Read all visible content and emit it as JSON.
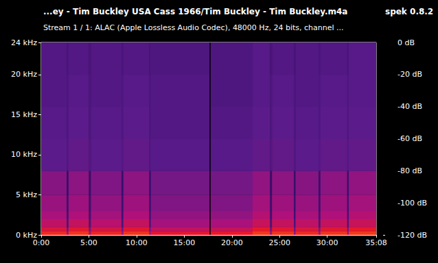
{
  "chart_data": {
    "type": "heatmap",
    "title": "...ey - Tim Buckley USA Cass 1966/Tim Buckley - Tim Buckley.m4a",
    "subtitle": "Stream 1 / 1: ALAC (Apple Lossless Audio Codec), 48000 Hz, 24 bits, channel ...",
    "annotations": [
      "spek 0.8.2"
    ],
    "xlim": [
      0,
      2108
    ],
    "xticks": [
      {
        "value": 0,
        "label": "0:00"
      },
      {
        "value": 300,
        "label": "5:00"
      },
      {
        "value": 600,
        "label": "10:00"
      },
      {
        "value": 900,
        "label": "15:00"
      },
      {
        "value": 1200,
        "label": "20:00"
      },
      {
        "value": 1500,
        "label": "25:00"
      },
      {
        "value": 1800,
        "label": "30:00"
      },
      {
        "value": 2108,
        "label": "35:08"
      }
    ],
    "ylim": [
      0,
      24
    ],
    "yticks": [
      {
        "value": 0,
        "label": "0 kHz"
      },
      {
        "value": 5,
        "label": "5 kHz"
      },
      {
        "value": 10,
        "label": "10 kHz"
      },
      {
        "value": 15,
        "label": "15 kHz"
      },
      {
        "value": 20,
        "label": "20 kHz"
      },
      {
        "value": 24,
        "label": "24 kHz"
      }
    ],
    "x_bins": [
      0,
      160,
      172,
      300,
      312,
      505,
      517,
      680,
      690,
      1060,
      1066,
      1330,
      1440,
      1452,
      1590,
      1600,
      1745,
      1757,
      1925,
      1935,
      2108
    ],
    "y_bins": [
      0,
      0.5,
      1,
      2,
      3,
      5,
      8,
      12,
      16,
      20,
      24
    ],
    "cells": [
      [
        -56,
        -63,
        -69,
        -73,
        -76,
        -79,
        -86,
        -87,
        -88,
        -88
      ],
      [
        -74,
        -84,
        -90,
        -92,
        -93,
        -94,
        -88,
        -89,
        -89,
        -90
      ],
      [
        -54,
        -61,
        -68,
        -72,
        -75,
        -78,
        -85,
        -86,
        -87,
        -88
      ],
      [
        -74,
        -84,
        -90,
        -92,
        -93,
        -94,
        -88,
        -89,
        -89,
        -90
      ],
      [
        -57,
        -64,
        -70,
        -74,
        -77,
        -80,
        -86,
        -87,
        -88,
        -88
      ],
      [
        -74,
        -84,
        -90,
        -92,
        -93,
        -94,
        -88,
        -89,
        -89,
        -90
      ],
      [
        -54,
        -61,
        -68,
        -72,
        -75,
        -78,
        -85,
        -86,
        -87,
        -88
      ],
      [
        -74,
        -84,
        -90,
        -92,
        -93,
        -94,
        -88,
        -89,
        -89,
        -90
      ],
      [
        -61,
        -68,
        -74,
        -77,
        -80,
        -82,
        -87,
        -88,
        -88,
        -89
      ],
      [
        -120,
        -120,
        -120,
        -120,
        -120,
        -120,
        -120,
        -120,
        -120,
        -120
      ],
      [
        -60,
        -67,
        -73,
        -77,
        -80,
        -82,
        -87,
        -88,
        -89,
        -89
      ],
      [
        -53,
        -60,
        -67,
        -71,
        -74,
        -77,
        -85,
        -86,
        -87,
        -87
      ],
      [
        -74,
        -84,
        -90,
        -92,
        -93,
        -94,
        -88,
        -89,
        -89,
        -90
      ],
      [
        -54,
        -61,
        -68,
        -72,
        -75,
        -78,
        -85,
        -86,
        -87,
        -88
      ],
      [
        -74,
        -84,
        -90,
        -92,
        -93,
        -94,
        -88,
        -89,
        -89,
        -90
      ],
      [
        -56,
        -63,
        -69,
        -73,
        -76,
        -79,
        -86,
        -87,
        -88,
        -88
      ],
      [
        -74,
        -84,
        -90,
        -92,
        -93,
        -94,
        -88,
        -89,
        -89,
        -90
      ],
      [
        -54,
        -61,
        -68,
        -72,
        -75,
        -78,
        -85,
        -86,
        -87,
        -88
      ],
      [
        -74,
        -84,
        -90,
        -92,
        -93,
        -94,
        -88,
        -89,
        -89,
        -90
      ],
      [
        -53,
        -60,
        -67,
        -71,
        -74,
        -77,
        -85,
        -86,
        -87,
        -87
      ]
    ],
    "colorbar": {
      "range": [
        -120,
        0
      ],
      "ticks": [
        {
          "value": 0,
          "label": "0 dB"
        },
        {
          "value": -20,
          "label": "-20 dB"
        },
        {
          "value": -40,
          "label": "-40 dB"
        },
        {
          "value": -60,
          "label": "-60 dB"
        },
        {
          "value": -80,
          "label": "-80 dB"
        },
        {
          "value": -100,
          "label": "-100 dB"
        },
        {
          "value": -120,
          "label": "-120 dB"
        }
      ]
    }
  }
}
